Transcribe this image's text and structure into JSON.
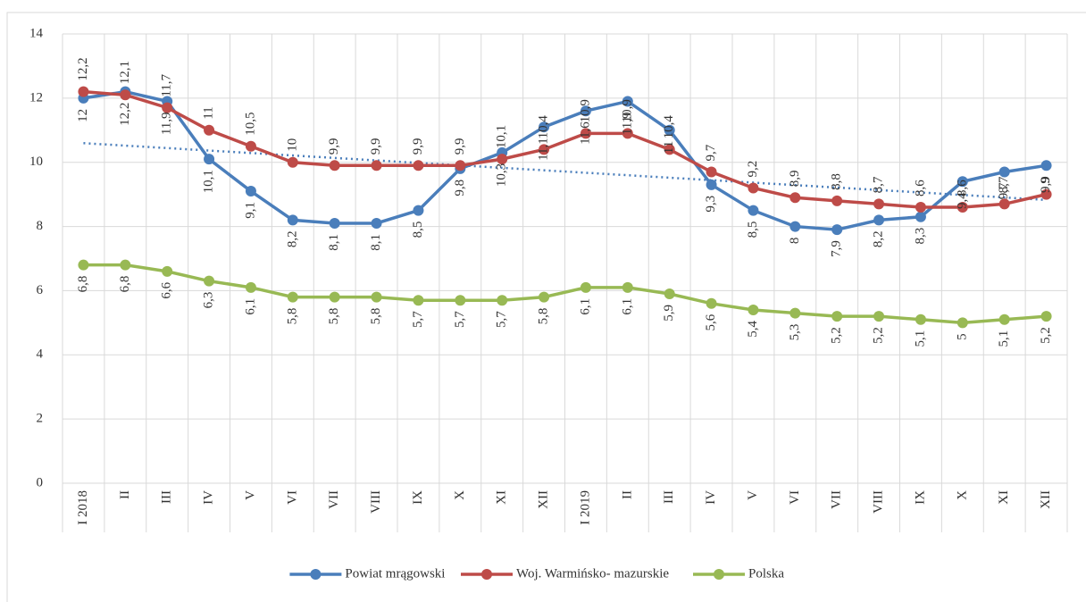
{
  "chart_data": {
    "type": "line",
    "categories": [
      "I 2018",
      "II",
      "III",
      "IV",
      "V",
      "VI",
      "VII",
      "VIII",
      "IX",
      "X",
      "XI",
      "XII",
      "I 2019",
      "II",
      "III",
      "IV",
      "V",
      "VI",
      "VII",
      "VIII",
      "IX",
      "X",
      "XI",
      "XII"
    ],
    "series": [
      {
        "name": "Powiat mrągowski",
        "color": "#4a7ebb",
        "label_side": "below",
        "trendline": true,
        "values": [
          12,
          12.2,
          11.9,
          10.1,
          9.1,
          8.2,
          8.1,
          8.1,
          8.5,
          9.8,
          10.3,
          11.1,
          11.6,
          11.9,
          11,
          9.3,
          8.5,
          8,
          7.9,
          8.2,
          8.3,
          9.4,
          9.7,
          9.9
        ],
        "value_labels": [
          "12",
          "12,2",
          "11,9",
          "10,1",
          "9,1",
          "8,2",
          "8,1",
          "8,1",
          "8,5",
          "9,8",
          "10,3",
          "11,1",
          "11,6",
          "11,9",
          "11",
          "9,3",
          "8,5",
          "8",
          "7,9",
          "8,2",
          "8,3",
          "9,4",
          "9,7",
          "9,9"
        ]
      },
      {
        "name": "Woj. Warmińsko- mazurskie",
        "color": "#be4b48",
        "label_side": "above",
        "values": [
          12.2,
          12.1,
          11.7,
          11,
          10.5,
          10,
          9.9,
          9.9,
          9.9,
          9.9,
          10.1,
          10.4,
          10.9,
          10.9,
          10.4,
          9.7,
          9.2,
          8.9,
          8.8,
          8.7,
          8.6,
          8.6,
          8.7,
          9
        ],
        "value_labels": [
          "12,2",
          "12,1",
          "11,7",
          "11",
          "10,5",
          "10",
          "9,9",
          "9,9",
          "9,9",
          "9,9",
          "10,1",
          "10,4",
          "10,9",
          "10,9",
          "10,4",
          "9,7",
          "9,2",
          "8,9",
          "8,8",
          "8,7",
          "8,6",
          "8,6",
          "8,7",
          "9"
        ]
      },
      {
        "name": "Polska",
        "color": "#98b954",
        "label_side": "below",
        "values": [
          6.8,
          6.8,
          6.6,
          6.3,
          6.1,
          5.8,
          5.8,
          5.8,
          5.7,
          5.7,
          5.7,
          5.8,
          6.1,
          6.1,
          5.9,
          5.6,
          5.4,
          5.3,
          5.2,
          5.2,
          5.1,
          5,
          5.1,
          5.2
        ],
        "value_labels": [
          "6,8",
          "6,8",
          "6,6",
          "6,3",
          "6,1",
          "5,8",
          "5,8",
          "5,8",
          "5,7",
          "5,7",
          "5,7",
          "5,8",
          "6,1",
          "6,1",
          "5,9",
          "5,6",
          "5,4",
          "5,3",
          "5,2",
          "5,2",
          "5,1",
          "5",
          "5,1",
          "5,2"
        ]
      }
    ],
    "ylim": [
      0,
      14
    ],
    "yticks": [
      0,
      2,
      4,
      6,
      8,
      10,
      12,
      14
    ],
    "grid": true,
    "legend": "bottom"
  }
}
